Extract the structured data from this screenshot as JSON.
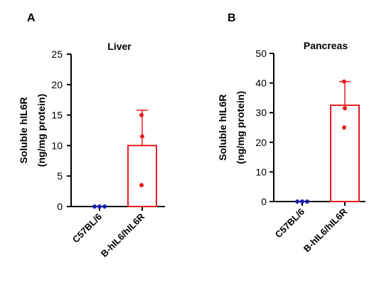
{
  "chart_data": [
    {
      "type": "bar",
      "panel": "A",
      "title": "Liver",
      "ylabel_line1": "Soluble hIL6R",
      "ylabel_line2": "(ng/mg protein)",
      "ylim": [
        0,
        25
      ],
      "yticks": [
        0,
        5,
        10,
        15,
        20,
        25
      ],
      "categories": [
        "C57BL/6",
        "B-hIL6/hIL6R"
      ],
      "values": [
        0,
        10
      ],
      "error": [
        0,
        5.8
      ],
      "points": [
        [
          0,
          0,
          0
        ],
        [
          3.5,
          11.5,
          15
        ]
      ],
      "colors": [
        "#1f1fa8",
        "#e8191f"
      ]
    },
    {
      "type": "bar",
      "panel": "B",
      "title": "Pancreas",
      "ylabel_line1": "Soluble hIL6R",
      "ylabel_line2": "(ng/mg protein)",
      "ylim": [
        0,
        50
      ],
      "yticks": [
        0,
        10,
        20,
        30,
        40,
        50
      ],
      "categories": [
        "C57BL/6",
        "B-hIL6/hIL6R"
      ],
      "values": [
        0,
        32.5
      ],
      "error": [
        0,
        8
      ],
      "points": [
        [
          0,
          0,
          0
        ],
        [
          25,
          31.5,
          40.5
        ]
      ],
      "colors": [
        "#1f1fa8",
        "#e8191f"
      ]
    }
  ]
}
